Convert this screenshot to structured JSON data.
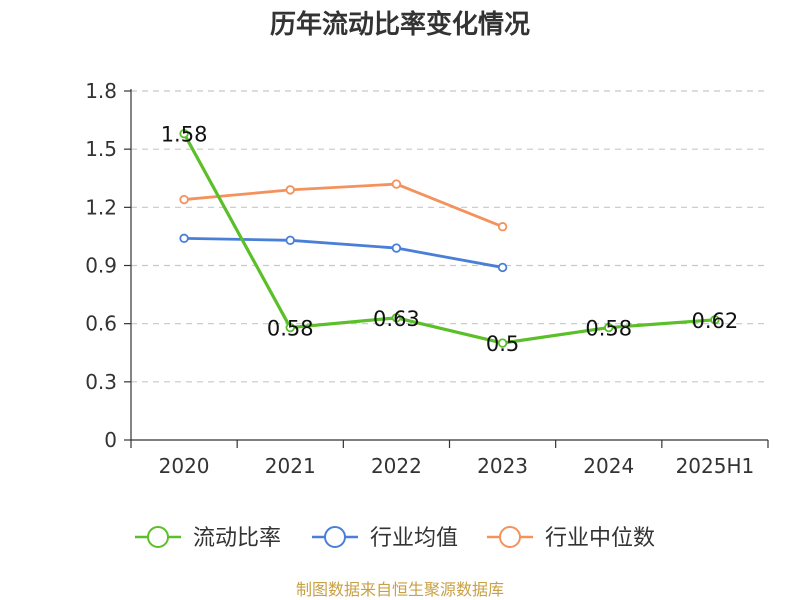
{
  "chart_data": {
    "type": "line",
    "title": "历年流动比率变化情况",
    "xlabel": "",
    "ylabel": "",
    "categories": [
      "2020",
      "2021",
      "2022",
      "2023",
      "2024",
      "2025H1"
    ],
    "ylim": [
      0,
      1.8
    ],
    "yticks": [
      "0",
      "0.3",
      "0.6",
      "0.9",
      "1.2",
      "1.5",
      "1.8"
    ],
    "grid": true,
    "legend_position": "bottom",
    "series": [
      {
        "name": "流动比率",
        "color": "#5bbf2a",
        "values": [
          1.58,
          0.58,
          0.63,
          0.5,
          0.58,
          0.62
        ],
        "labels": [
          "1.58",
          "0.58",
          "0.63",
          "0.5",
          "0.58",
          "0.62"
        ]
      },
      {
        "name": "行业均值",
        "color": "#4a7fd8",
        "values": [
          1.04,
          1.03,
          0.99,
          0.89,
          null,
          null
        ]
      },
      {
        "name": "行业中位数",
        "color": "#f4925c",
        "values": [
          1.24,
          1.29,
          1.32,
          1.1,
          null,
          null
        ]
      }
    ]
  },
  "source_note": "制图数据来自恒生聚源数据库"
}
